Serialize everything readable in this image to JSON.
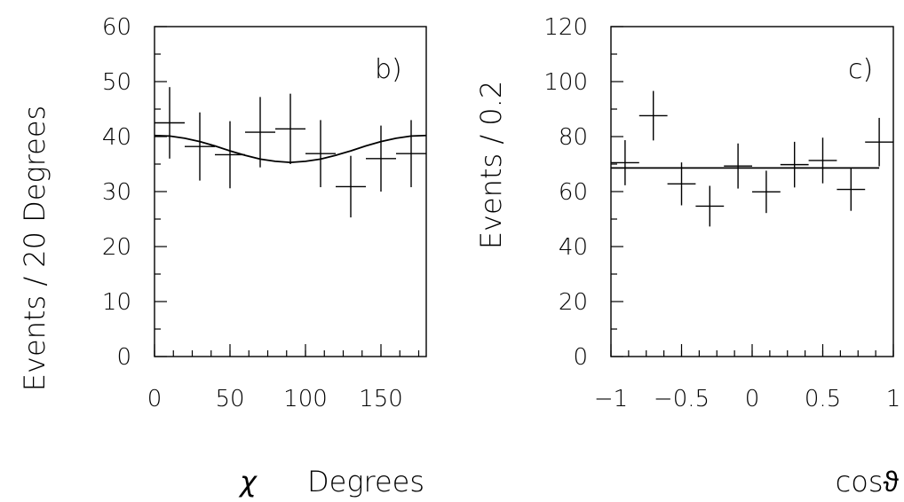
{
  "chart_data": [
    {
      "type": "scatter",
      "panel_label": "b)",
      "ylabel": "Events / 20 Degrees",
      "xlabel_symbol": "χ",
      "xlabel_unit": "Degrees",
      "xlim": [
        0,
        180
      ],
      "ylim": [
        0,
        60
      ],
      "x_ticks": [
        "0",
        "50",
        "100",
        "150"
      ],
      "y_ticks": [
        "0",
        "10",
        "20",
        "30",
        "40",
        "50",
        "60"
      ],
      "series": [
        {
          "x": [
            10,
            30,
            50,
            70,
            90,
            110,
            130,
            150,
            170
          ],
          "y": [
            42.5,
            38.2,
            36.7,
            40.8,
            41.4,
            36.9,
            30.9,
            36.0,
            36.9
          ],
          "y_err": [
            6.5,
            6.2,
            6.1,
            6.4,
            6.4,
            6.1,
            5.6,
            6.0,
            6.1
          ],
          "x_err": 10
        }
      ],
      "fit": {
        "x": [
          0,
          10,
          20,
          30,
          40,
          50,
          60,
          70,
          80,
          90,
          100,
          110,
          120,
          130,
          140,
          150,
          160,
          170,
          180
        ],
        "y": [
          40.2,
          40.1,
          39.7,
          39.1,
          38.3,
          37.4,
          36.6,
          35.9,
          35.5,
          35.3,
          35.5,
          35.9,
          36.6,
          37.4,
          38.3,
          39.1,
          39.7,
          40.1,
          40.2
        ]
      }
    },
    {
      "type": "scatter",
      "panel_label": "c)",
      "ylabel": "Events / 0.2",
      "xlabel_symbol": "cosϑ",
      "xlim": [
        -1,
        1
      ],
      "ylim": [
        0,
        120
      ],
      "x_ticks": [
        "−1",
        "−0.5",
        "0",
        "0.5",
        "1"
      ],
      "y_ticks": [
        "0",
        "20",
        "40",
        "60",
        "80",
        "100",
        "120"
      ],
      "series": [
        {
          "x": [
            -0.9,
            -0.7,
            -0.5,
            -0.3,
            -0.1,
            0.1,
            0.3,
            0.5,
            0.7,
            0.9
          ],
          "y": [
            70.5,
            87.6,
            62.8,
            54.7,
            69.3,
            59.9,
            69.8,
            71.3,
            60.8,
            78.0
          ],
          "y_err": [
            8.2,
            9.0,
            7.8,
            7.4,
            8.2,
            7.7,
            8.3,
            8.3,
            7.8,
            8.8
          ],
          "x_err": 0.1
        }
      ],
      "fit": {
        "x": [
          -1,
          0.9
        ],
        "y": [
          68.6,
          68.6
        ]
      }
    }
  ]
}
